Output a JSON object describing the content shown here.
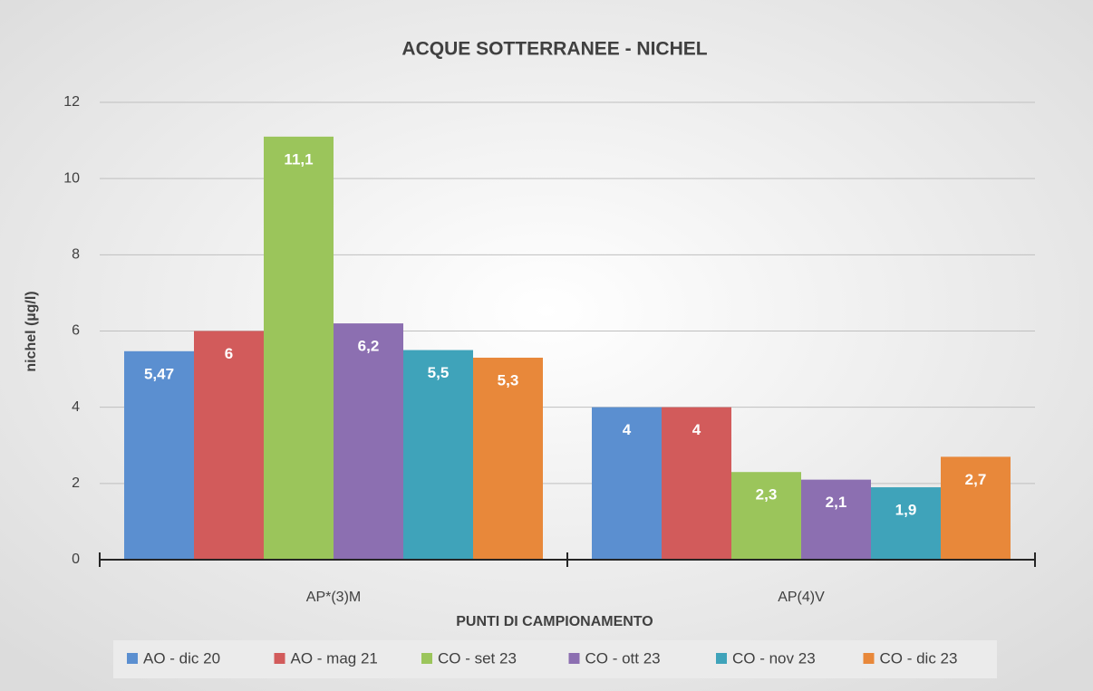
{
  "chart_data": {
    "type": "bar",
    "title": "ACQUE SOTTERRANEE - NICHEL",
    "x_label": "PUNTI DI CAMPIONAMENTO",
    "y_label": "nichel (µg/l)",
    "categories": [
      "AP*(3)M",
      "AP(4)V"
    ],
    "series": [
      {
        "name": "AO - dic 20",
        "color": "#5b8fd0",
        "values": [
          5.47,
          4
        ],
        "value_labels": [
          "5,47",
          "4"
        ]
      },
      {
        "name": "AO - mag 21",
        "color": "#d25b5b",
        "values": [
          6,
          4
        ],
        "value_labels": [
          "6",
          "4"
        ]
      },
      {
        "name": "CO - set 23",
        "color": "#9bc55b",
        "values": [
          11.1,
          2.3
        ],
        "value_labels": [
          "11,1",
          "2,3"
        ]
      },
      {
        "name": "CO - ott 23",
        "color": "#8c6fb1",
        "values": [
          6.2,
          2.1
        ],
        "value_labels": [
          "6,2",
          "2,1"
        ]
      },
      {
        "name": "CO - nov 23",
        "color": "#3fa3ba",
        "values": [
          5.5,
          1.9
        ],
        "value_labels": [
          "5,5",
          "1,9"
        ]
      },
      {
        "name": "CO - dic 23",
        "color": "#e8883a",
        "values": [
          5.3,
          2.7
        ],
        "value_labels": [
          "5,3",
          "2,7"
        ]
      }
    ],
    "ylim": [
      0,
      12
    ],
    "yticks": [
      0,
      2,
      4,
      6,
      8,
      10,
      12
    ],
    "grid": true,
    "legend": "bottom"
  }
}
